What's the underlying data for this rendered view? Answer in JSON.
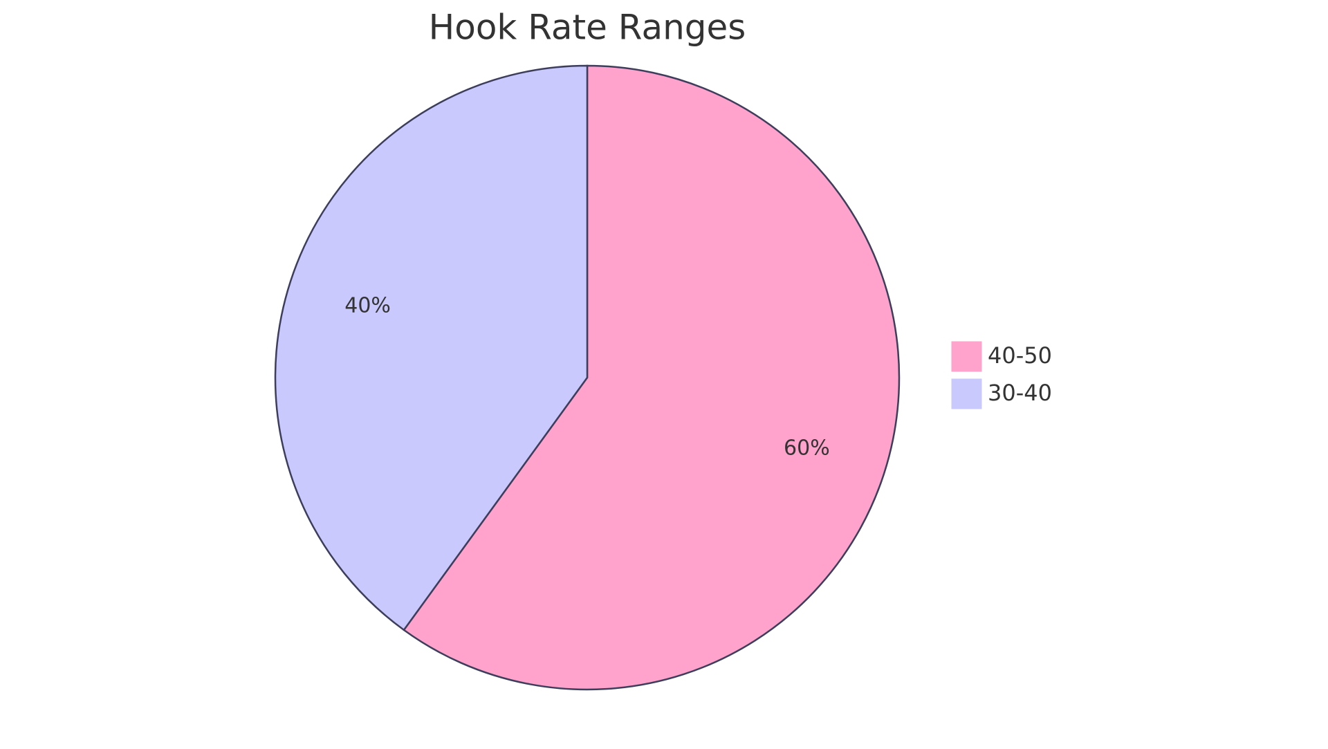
{
  "chart_data": {
    "type": "pie",
    "title": "Hook Rate Ranges",
    "categories": [
      "40-50",
      "30-40"
    ],
    "values": [
      60,
      40
    ],
    "value_labels": [
      "60%",
      "40%"
    ],
    "colors": [
      "#ffa3cc",
      "#c9c9fd"
    ],
    "legend": "right"
  }
}
